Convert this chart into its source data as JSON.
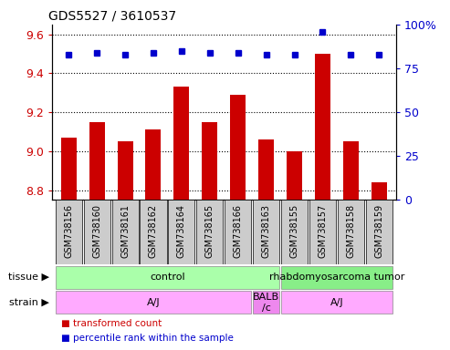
{
  "title": "GDS5527 / 3610537",
  "samples": [
    "GSM738156",
    "GSM738160",
    "GSM738161",
    "GSM738162",
    "GSM738164",
    "GSM738165",
    "GSM738166",
    "GSM738163",
    "GSM738155",
    "GSM738157",
    "GSM738158",
    "GSM738159"
  ],
  "bar_values": [
    9.07,
    9.15,
    9.05,
    9.11,
    9.33,
    9.15,
    9.29,
    9.06,
    9.0,
    9.5,
    9.05,
    8.84
  ],
  "dot_values": [
    83,
    84,
    83,
    84,
    85,
    84,
    84,
    83,
    83,
    96,
    83,
    83
  ],
  "ylim_left": [
    8.75,
    9.65
  ],
  "ylim_right": [
    0,
    100
  ],
  "yticks_left": [
    8.8,
    9.0,
    9.2,
    9.4,
    9.6
  ],
  "yticks_right": [
    0,
    25,
    50,
    75,
    100
  ],
  "bar_color": "#cc0000",
  "dot_color": "#0000cc",
  "tissue_labels": [
    {
      "text": "control",
      "start": 0,
      "end": 7,
      "color": "#aaffaa"
    },
    {
      "text": "rhabdomyosarcoma tumor",
      "start": 8,
      "end": 11,
      "color": "#88ee88"
    }
  ],
  "strain_labels": [
    {
      "text": "A/J",
      "start": 0,
      "end": 6,
      "color": "#ffaaff"
    },
    {
      "text": "BALB\n/c",
      "start": 7,
      "end": 7,
      "color": "#ee88ee"
    },
    {
      "text": "A/J",
      "start": 8,
      "end": 11,
      "color": "#ffaaff"
    }
  ],
  "tissue_row_label": "tissue",
  "strain_row_label": "strain",
  "legend_bar_label": "transformed count",
  "legend_dot_label": "percentile rank within the sample",
  "left_color": "#cc0000",
  "right_color": "#0000cc",
  "bar_bottom": 8.75,
  "tick_label_fontsize": 7,
  "axis_fontsize": 9
}
